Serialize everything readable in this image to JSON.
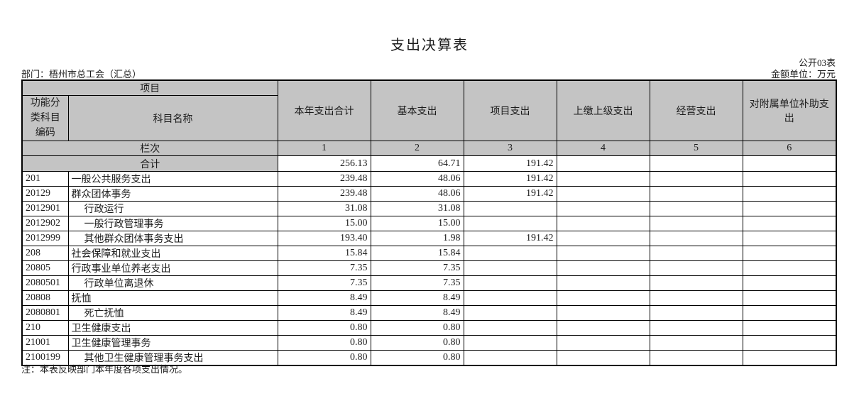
{
  "page": {
    "title": "支出决算表",
    "table_code": "公开03表",
    "department_label": "部门：梧州市总工会（汇总）",
    "unit_label": "金额单位：万元",
    "note": "注：本表反映部门本年度各项支出情况。"
  },
  "colors": {
    "header_bg": "#c4c4c4",
    "border": "#000000"
  },
  "table": {
    "header": {
      "project_group": "项目",
      "code_label": "功能分类科目编码",
      "name_label": "科目名称",
      "columns": [
        "本年支出合计",
        "基本支出",
        "项目支出",
        "上缴上级支出",
        "经营支出",
        "对附属单位补助支出"
      ],
      "row_index_label": "栏次",
      "column_numbers": [
        "1",
        "2",
        "3",
        "4",
        "5",
        "6"
      ]
    },
    "total_row": {
      "label": "合计",
      "values": [
        "256.13",
        "64.71",
        "191.42",
        "",
        "",
        ""
      ]
    },
    "rows": [
      {
        "code": "201",
        "name": "一般公共服务支出",
        "indent": 0,
        "values": [
          "239.48",
          "48.06",
          "191.42",
          "",
          "",
          ""
        ]
      },
      {
        "code": "20129",
        "name": "群众团体事务",
        "indent": 0,
        "values": [
          "239.48",
          "48.06",
          "191.42",
          "",
          "",
          ""
        ]
      },
      {
        "code": "2012901",
        "name": "行政运行",
        "indent": 1,
        "values": [
          "31.08",
          "31.08",
          "",
          "",
          "",
          ""
        ]
      },
      {
        "code": "2012902",
        "name": "一般行政管理事务",
        "indent": 1,
        "values": [
          "15.00",
          "15.00",
          "",
          "",
          "",
          ""
        ]
      },
      {
        "code": "2012999",
        "name": "其他群众团体事务支出",
        "indent": 1,
        "values": [
          "193.40",
          "1.98",
          "191.42",
          "",
          "",
          ""
        ]
      },
      {
        "code": "208",
        "name": "社会保障和就业支出",
        "indent": 0,
        "values": [
          "15.84",
          "15.84",
          "",
          "",
          "",
          ""
        ]
      },
      {
        "code": "20805",
        "name": "行政事业单位养老支出",
        "indent": 0,
        "values": [
          "7.35",
          "7.35",
          "",
          "",
          "",
          ""
        ]
      },
      {
        "code": "2080501",
        "name": "行政单位离退休",
        "indent": 1,
        "values": [
          "7.35",
          "7.35",
          "",
          "",
          "",
          ""
        ]
      },
      {
        "code": "20808",
        "name": "抚恤",
        "indent": 0,
        "values": [
          "8.49",
          "8.49",
          "",
          "",
          "",
          ""
        ]
      },
      {
        "code": "2080801",
        "name": "死亡抚恤",
        "indent": 1,
        "values": [
          "8.49",
          "8.49",
          "",
          "",
          "",
          ""
        ]
      },
      {
        "code": "210",
        "name": "卫生健康支出",
        "indent": 0,
        "values": [
          "0.80",
          "0.80",
          "",
          "",
          "",
          ""
        ]
      },
      {
        "code": "21001",
        "name": "卫生健康管理事务",
        "indent": 0,
        "values": [
          "0.80",
          "0.80",
          "",
          "",
          "",
          ""
        ]
      },
      {
        "code": "2100199",
        "name": "其他卫生健康管理事务支出",
        "indent": 1,
        "values": [
          "0.80",
          "0.80",
          "",
          "",
          "",
          ""
        ]
      }
    ]
  }
}
